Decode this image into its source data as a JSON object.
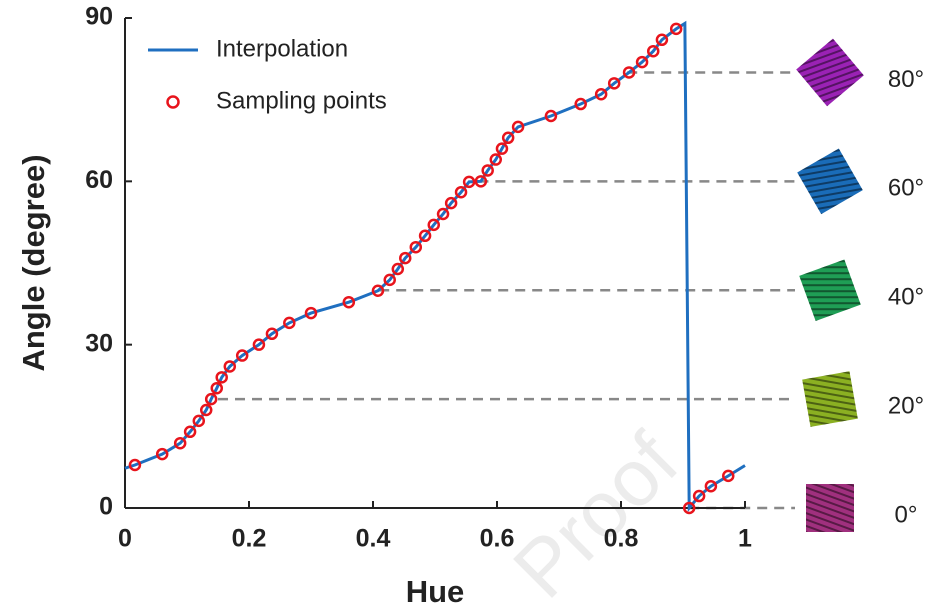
{
  "chart_data": {
    "type": "line",
    "xlabel": "Hue",
    "ylabel": "Angle (degree)",
    "xlim": [
      0,
      1
    ],
    "ylim": [
      0,
      90
    ],
    "xticks": [
      0,
      0.2,
      0.4,
      0.6,
      0.8,
      1
    ],
    "yticks": [
      0,
      30,
      60,
      90
    ],
    "legend": "upper-left",
    "watermark": "Proof",
    "series": [
      {
        "name": "Interpolation",
        "color": "#1f6fc0",
        "style": "line",
        "x": [
          0,
          0.016,
          0.06,
          0.089,
          0.105,
          0.119,
          0.131,
          0.139,
          0.148,
          0.156,
          0.169,
          0.189,
          0.216,
          0.237,
          0.265,
          0.3,
          0.361,
          0.408,
          0.427,
          0.44,
          0.452,
          0.469,
          0.484,
          0.498,
          0.513,
          0.526,
          0.542,
          0.555,
          0.574,
          0.585,
          0.598,
          0.608,
          0.618,
          0.634,
          0.687,
          0.735,
          0.768,
          0.789,
          0.813,
          0.834,
          0.852,
          0.866,
          0.889,
          0.903,
          0.91,
          0.926,
          0.945,
          0.973,
          1
        ],
        "values": [
          7.3,
          7.9,
          9.9,
          11.9,
          14,
          16,
          18,
          20,
          22,
          24,
          26,
          28,
          30,
          32,
          34,
          35.8,
          37.8,
          39.9,
          41.9,
          43.9,
          45.9,
          47.9,
          50,
          52,
          54,
          56,
          58,
          59.9,
          60,
          62,
          64,
          66,
          68,
          70,
          72,
          74.2,
          76,
          78,
          80,
          81.9,
          83.9,
          86,
          88,
          89,
          0,
          2.2,
          4,
          5.9,
          7.8
        ]
      },
      {
        "name": "Sampling points",
        "color": "#e8141c",
        "style": "marker",
        "x": [
          0.016,
          0.06,
          0.089,
          0.105,
          0.119,
          0.131,
          0.139,
          0.148,
          0.156,
          0.169,
          0.189,
          0.216,
          0.237,
          0.265,
          0.3,
          0.361,
          0.408,
          0.427,
          0.44,
          0.452,
          0.469,
          0.484,
          0.498,
          0.513,
          0.526,
          0.542,
          0.555,
          0.574,
          0.585,
          0.598,
          0.608,
          0.618,
          0.634,
          0.687,
          0.735,
          0.768,
          0.789,
          0.813,
          0.834,
          0.852,
          0.866,
          0.889,
          0.91,
          0.926,
          0.945,
          0.973
        ],
        "values": [
          7.9,
          9.9,
          11.9,
          14,
          16,
          18,
          20,
          22,
          24,
          26,
          28,
          30,
          32,
          34,
          35.8,
          37.8,
          39.9,
          41.9,
          43.9,
          45.9,
          47.9,
          50,
          52,
          54,
          56,
          58,
          59.9,
          60,
          62,
          64,
          66,
          68,
          70,
          72,
          74.2,
          76,
          78,
          80,
          81.9,
          83.9,
          86,
          88,
          0,
          2.2,
          4,
          5.9
        ]
      }
    ],
    "reference_lines": [
      {
        "value": 80,
        "label": "80°",
        "x_start": 0.81,
        "color": "#9a22b4"
      },
      {
        "value": 60,
        "label": "60°",
        "x_start": 0.57,
        "color": "#1a6cb8"
      },
      {
        "value": 40,
        "label": "40°",
        "x_start": 0.41,
        "color": "#1f9e55"
      },
      {
        "value": 20,
        "label": "20°",
        "x_start": 0.15,
        "color": "#8bb022"
      },
      {
        "value": 0,
        "label": "0°",
        "x_start": 0.91,
        "color": "#a0307e"
      }
    ]
  }
}
